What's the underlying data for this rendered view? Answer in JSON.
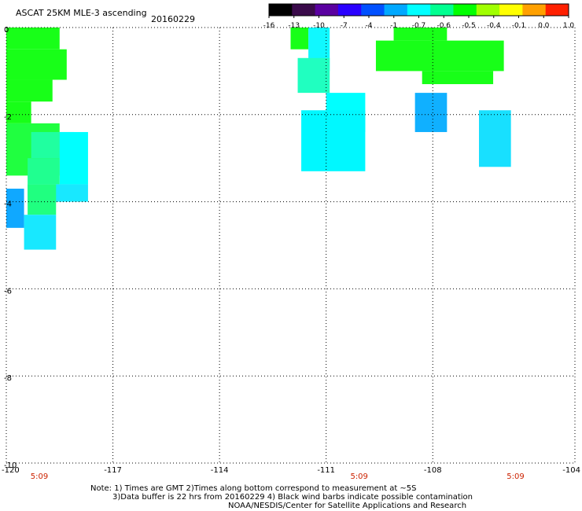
{
  "header": {
    "title": "ASCAT 25KM MLE-3 ascending",
    "date": "20160229"
  },
  "colorbar": {
    "labels": [
      "-16",
      "-13",
      "-10",
      "-7",
      "-4",
      "-1",
      "-0.7",
      "-0.6",
      "-0.5",
      "-0.4",
      "-0.1",
      "0.0",
      "1.0"
    ],
    "colors": [
      "#000000",
      "#3a0a4a",
      "#5a00a0",
      "#2a00ff",
      "#0050ff",
      "#00a8ff",
      "#00ffff",
      "#00ff90",
      "#00ff00",
      "#a0ff00",
      "#ffff00",
      "#ffa000",
      "#ff2000"
    ]
  },
  "chart_data": {
    "type": "heatmap",
    "x_range": [
      -120,
      -104
    ],
    "y_range": [
      -10,
      0
    ],
    "x_ticks": [
      "-120",
      "-117",
      "-114",
      "-111",
      "-108",
      "-104"
    ],
    "y_ticks": [
      "0",
      "-2",
      "-4",
      "-6",
      "-8",
      "-10"
    ],
    "grid": true,
    "time_labels": [
      {
        "lon": -120,
        "text": "5:09"
      },
      {
        "lon": -111,
        "text": "5:09"
      },
      {
        "lon": -106.6,
        "text": "5:09"
      }
    ],
    "swaths": [
      {
        "lon": [
          -120.0,
          -118.5
        ],
        "lat": [
          0.0,
          -0.5
        ],
        "color": "#18ff18"
      },
      {
        "lon": [
          -120.0,
          -118.3
        ],
        "lat": [
          -0.5,
          -1.2
        ],
        "color": "#18ff18"
      },
      {
        "lon": [
          -120.0,
          -118.7
        ],
        "lat": [
          -1.2,
          -1.7
        ],
        "color": "#18ff18"
      },
      {
        "lon": [
          -120.0,
          -119.3
        ],
        "lat": [
          -1.7,
          -2.2
        ],
        "color": "#18ff18"
      },
      {
        "lon": [
          -120.0,
          -118.5
        ],
        "lat": [
          -2.2,
          -3.4
        ],
        "color": "#20ff40"
      },
      {
        "lon": [
          -119.3,
          -118.1
        ],
        "lat": [
          -2.4,
          -3.0
        ],
        "color": "#20ffa0"
      },
      {
        "lon": [
          -118.5,
          -117.7
        ],
        "lat": [
          -2.4,
          -3.6
        ],
        "color": "#00ffff"
      },
      {
        "lon": [
          -119.4,
          -118.5
        ],
        "lat": [
          -3.0,
          -3.6
        ],
        "color": "#20ff90"
      },
      {
        "lon": [
          -119.4,
          -117.7
        ],
        "lat": [
          -3.6,
          -4.0
        ],
        "color": "#18e8ff"
      },
      {
        "lon": [
          -119.4,
          -118.6
        ],
        "lat": [
          -3.6,
          -4.3
        ],
        "color": "#20ff80"
      },
      {
        "lon": [
          -120.0,
          -119.5
        ],
        "lat": [
          -3.7,
          -4.6
        ],
        "color": "#10a8ff"
      },
      {
        "lon": [
          -119.5,
          -118.6
        ],
        "lat": [
          -4.3,
          -5.1
        ],
        "color": "#18e8ff"
      },
      {
        "lon": [
          -112.0,
          -111.5
        ],
        "lat": [
          0.0,
          -0.5
        ],
        "color": "#18ff18"
      },
      {
        "lon": [
          -111.5,
          -110.9
        ],
        "lat": [
          0.0,
          -1.0
        ],
        "color": "#10f8ff"
      },
      {
        "lon": [
          -111.8,
          -110.9
        ],
        "lat": [
          -0.7,
          -1.5
        ],
        "color": "#20ffc0"
      },
      {
        "lon": [
          -111.0,
          -109.9
        ],
        "lat": [
          -1.5,
          -2.4
        ],
        "color": "#00ffff"
      },
      {
        "lon": [
          -111.7,
          -109.9
        ],
        "lat": [
          -1.9,
          -3.3
        ],
        "color": "#00f8ff"
      },
      {
        "lon": [
          -109.1,
          -107.6
        ],
        "lat": [
          0.0,
          -0.3
        ],
        "color": "#18ff18"
      },
      {
        "lon": [
          -109.6,
          -106.0
        ],
        "lat": [
          -0.3,
          -1.0
        ],
        "color": "#18ff18"
      },
      {
        "lon": [
          -108.3,
          -106.3
        ],
        "lat": [
          -1.0,
          -1.3
        ],
        "color": "#18ff18"
      },
      {
        "lon": [
          -108.5,
          -107.6
        ],
        "lat": [
          -1.5,
          -2.4
        ],
        "color": "#10b0ff"
      },
      {
        "lon": [
          -106.7,
          -105.8
        ],
        "lat": [
          -1.9,
          -3.2
        ],
        "color": "#18e0ff"
      }
    ]
  },
  "notes": [
    "Note: 1) Times are GMT 2)Times along bottom correspond to measurement at ~5S",
    "3)Data buffer is 22 hrs from 20160229 4) Black wind barbs indicate possible contamination",
    "NOAA/NESDIS/Center for Satellite Applications and Research"
  ]
}
